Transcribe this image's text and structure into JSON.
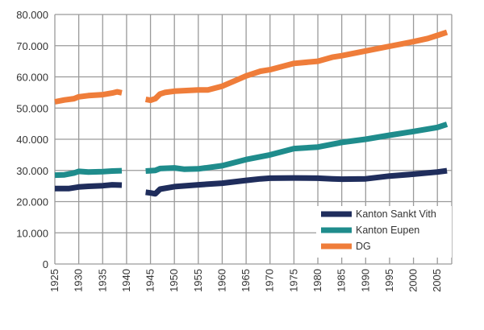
{
  "chart_data": {
    "type": "line",
    "title": "",
    "xlabel": "",
    "ylabel": "",
    "xlim": [
      1925,
      2008
    ],
    "ylim": [
      0,
      80000
    ],
    "grid": true,
    "legend_position": "bottom-right",
    "y_ticks": [
      {
        "value": 0,
        "label": "0"
      },
      {
        "value": 10000,
        "label": "10.000"
      },
      {
        "value": 20000,
        "label": "20.000"
      },
      {
        "value": 30000,
        "label": "30.000"
      },
      {
        "value": 40000,
        "label": "40.000"
      },
      {
        "value": 50000,
        "label": "50.000"
      },
      {
        "value": 60000,
        "label": "60.000"
      },
      {
        "value": 70000,
        "label": "70.000"
      },
      {
        "value": 80000,
        "label": "80.000"
      }
    ],
    "x_ticks": [
      {
        "value": 1925,
        "label": "1925"
      },
      {
        "value": 1930,
        "label": "1930"
      },
      {
        "value": 1935,
        "label": "1935"
      },
      {
        "value": 1940,
        "label": "1940"
      },
      {
        "value": 1945,
        "label": "1945"
      },
      {
        "value": 1950,
        "label": "1950"
      },
      {
        "value": 1955,
        "label": "1955"
      },
      {
        "value": 1960,
        "label": "1960"
      },
      {
        "value": 1965,
        "label": "1965"
      },
      {
        "value": 1970,
        "label": "1970"
      },
      {
        "value": 1975,
        "label": "1975"
      },
      {
        "value": 1980,
        "label": "1980"
      },
      {
        "value": 1985,
        "label": "1985"
      },
      {
        "value": 1990,
        "label": "1990"
      },
      {
        "value": 1995,
        "label": "1995"
      },
      {
        "value": 2000,
        "label": "2000"
      },
      {
        "value": 2005,
        "label": "2005"
      }
    ],
    "series": [
      {
        "name": "Kanton Sankt Vith",
        "color": "#1f2d5c",
        "segments": [
          [
            [
              1925,
              24200
            ],
            [
              1928,
              24200
            ],
            [
              1930,
              24700
            ],
            [
              1932,
              24900
            ],
            [
              1935,
              25100
            ],
            [
              1937,
              25400
            ],
            [
              1939,
              25300
            ]
          ],
          [
            [
              1944,
              23000
            ],
            [
              1945,
              22800
            ],
            [
              1946,
              22500
            ],
            [
              1947,
              24000
            ],
            [
              1950,
              24800
            ],
            [
              1955,
              25400
            ],
            [
              1960,
              25900
            ],
            [
              1965,
              26800
            ],
            [
              1968,
              27300
            ],
            [
              1970,
              27500
            ],
            [
              1975,
              27600
            ],
            [
              1980,
              27500
            ],
            [
              1983,
              27300
            ],
            [
              1985,
              27200
            ],
            [
              1990,
              27300
            ],
            [
              1995,
              28200
            ],
            [
              2000,
              28800
            ],
            [
              2005,
              29500
            ],
            [
              2007,
              29900
            ]
          ]
        ]
      },
      {
        "name": "Kanton Eupen",
        "color": "#1f8c8c",
        "segments": [
          [
            [
              1925,
              28500
            ],
            [
              1927,
              28600
            ],
            [
              1929,
              29200
            ],
            [
              1930,
              29700
            ],
            [
              1932,
              29500
            ],
            [
              1935,
              29600
            ],
            [
              1937,
              29800
            ],
            [
              1939,
              29900
            ]
          ],
          [
            [
              1944,
              29800
            ],
            [
              1945,
              29900
            ],
            [
              1946,
              30000
            ],
            [
              1947,
              30600
            ],
            [
              1950,
              30800
            ],
            [
              1952,
              30400
            ],
            [
              1955,
              30500
            ],
            [
              1960,
              31500
            ],
            [
              1965,
              33500
            ],
            [
              1970,
              35000
            ],
            [
              1975,
              37000
            ],
            [
              1980,
              37500
            ],
            [
              1985,
              39000
            ],
            [
              1990,
              40000
            ],
            [
              1995,
              41300
            ],
            [
              2000,
              42500
            ],
            [
              2005,
              43800
            ],
            [
              2007,
              44800
            ]
          ]
        ]
      },
      {
        "name": "DG",
        "color": "#ef7d3a",
        "segments": [
          [
            [
              1925,
              52000
            ],
            [
              1927,
              52600
            ],
            [
              1929,
              53000
            ],
            [
              1930,
              53600
            ],
            [
              1932,
              54000
            ],
            [
              1935,
              54300
            ],
            [
              1937,
              54800
            ],
            [
              1938,
              55200
            ],
            [
              1939,
              54900
            ]
          ],
          [
            [
              1944,
              52800
            ],
            [
              1945,
              52500
            ],
            [
              1946,
              53000
            ],
            [
              1947,
              54500
            ],
            [
              1948,
              55000
            ],
            [
              1950,
              55400
            ],
            [
              1955,
              55800
            ],
            [
              1957,
              55800
            ],
            [
              1960,
              57000
            ],
            [
              1963,
              59000
            ],
            [
              1965,
              60300
            ],
            [
              1968,
              61800
            ],
            [
              1970,
              62300
            ],
            [
              1975,
              64300
            ],
            [
              1980,
              65000
            ],
            [
              1983,
              66300
            ],
            [
              1985,
              66800
            ],
            [
              1990,
              68300
            ],
            [
              1995,
              69800
            ],
            [
              2000,
              71300
            ],
            [
              2003,
              72300
            ],
            [
              2005,
              73300
            ],
            [
              2007,
              74300
            ]
          ]
        ]
      }
    ]
  }
}
